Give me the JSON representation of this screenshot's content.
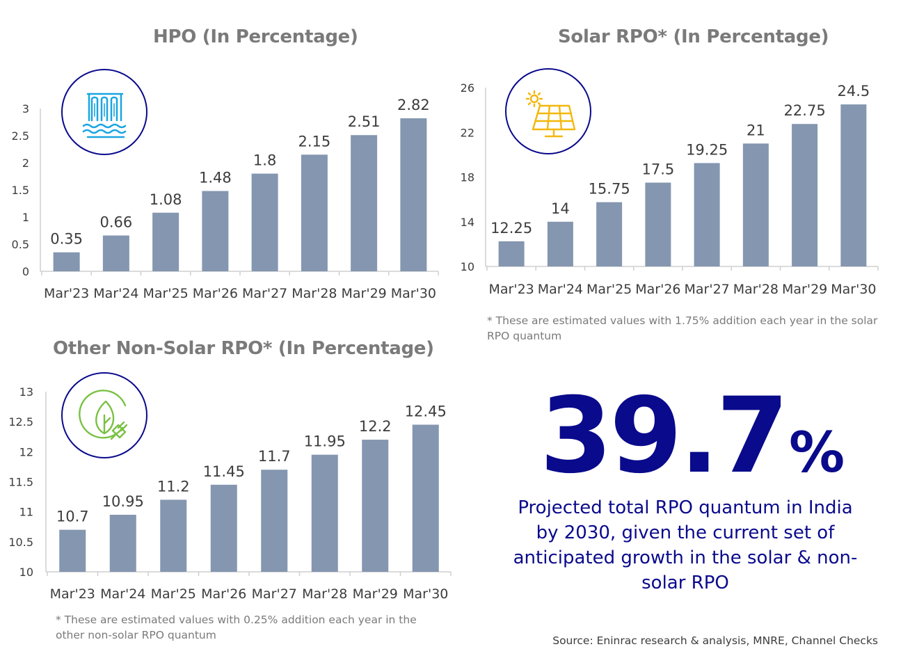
{
  "colors": {
    "bar": "#8496b0",
    "accent": "#0a0a8c",
    "title": "#7a7a7a",
    "axis": "#cfcfcf"
  },
  "chart_data": [
    {
      "type": "bar",
      "title": "HPO (In Percentage)",
      "icon": "hydropower-dam-icon",
      "categories": [
        "Mar'23",
        "Mar'24",
        "Mar'25",
        "Mar'26",
        "Mar'27",
        "Mar'28",
        "Mar'29",
        "Mar'30"
      ],
      "values": [
        0.35,
        0.66,
        1.08,
        1.48,
        1.8,
        2.15,
        2.51,
        2.82
      ],
      "value_labels": [
        "0.35",
        "0.66",
        "1.08",
        "1.48",
        "1.8",
        "2.15",
        "2.51",
        "2.82"
      ],
      "ylim": [
        0,
        3
      ],
      "yticks": [
        "0",
        "0.5",
        "1",
        "1.5",
        "2",
        "2.5",
        "3"
      ],
      "grid": false
    },
    {
      "type": "bar",
      "title": "Solar RPO* (In Percentage)",
      "icon": "solar-panel-icon",
      "categories": [
        "Mar'23",
        "Mar'24",
        "Mar'25",
        "Mar'26",
        "Mar'27",
        "Mar'28",
        "Mar'29",
        "Mar'30"
      ],
      "values": [
        12.25,
        14,
        15.75,
        17.5,
        19.25,
        21,
        22.75,
        24.5
      ],
      "value_labels": [
        "12.25",
        "14",
        "15.75",
        "17.5",
        "19.25",
        "21",
        "22.75",
        "24.5"
      ],
      "ylim": [
        10,
        26
      ],
      "yticks": [
        "10",
        "14",
        "18",
        "22",
        "26"
      ],
      "grid": false,
      "footnote": "* These are estimated values with 1.75% addition each year in the solar RPO quantum"
    },
    {
      "type": "bar",
      "title": "Other Non-Solar RPO* (In Percentage)",
      "icon": "leaf-plug-icon",
      "categories": [
        "Mar'23",
        "Mar'24",
        "Mar'25",
        "Mar'26",
        "Mar'27",
        "Mar'28",
        "Mar'29",
        "Mar'30"
      ],
      "values": [
        10.7,
        10.95,
        11.2,
        11.45,
        11.7,
        11.95,
        12.2,
        12.45
      ],
      "value_labels": [
        "10.7",
        "10.95",
        "11.2",
        "11.45",
        "11.7",
        "11.95",
        "12.2",
        "12.45"
      ],
      "ylim": [
        10,
        13
      ],
      "yticks": [
        "10",
        "10.5",
        "11",
        "11.5",
        "12",
        "12.5",
        "13"
      ],
      "grid": false,
      "footnote": "* These are estimated values with 0.25% addition each year in the other non-solar RPO quantum"
    }
  ],
  "highlight": {
    "value": "39.7",
    "unit": "%",
    "caption": "Projected total RPO quantum in India by 2030, given the current set of anticipated growth in the solar & non-solar RPO"
  },
  "source": "Source: Eninrac research & analysis,  MNRE, Channel Checks"
}
